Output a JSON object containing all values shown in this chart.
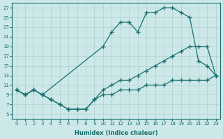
{
  "xlabel": "Humidex (Indice chaleur)",
  "bg_color": "#cce8e8",
  "line_color": "#1a7070",
  "grid_color": "#b0d0d0",
  "xlim": [
    -0.5,
    23.5
  ],
  "ylim": [
    4,
    28
  ],
  "xticks": [
    0,
    1,
    2,
    3,
    4,
    5,
    6,
    7,
    8,
    9,
    10,
    11,
    12,
    13,
    14,
    15,
    16,
    17,
    18,
    19,
    20,
    21,
    22,
    23
  ],
  "yticks": [
    5,
    7,
    9,
    11,
    13,
    15,
    17,
    19,
    21,
    23,
    25,
    27
  ],
  "line1_x": [
    0,
    1,
    2,
    3,
    10,
    11,
    12,
    13,
    14,
    15,
    16,
    17,
    18,
    19,
    20,
    21,
    22,
    23
  ],
  "line1_y": [
    10,
    9,
    10,
    9,
    19,
    22,
    24,
    24,
    22,
    26,
    26,
    27,
    27,
    26,
    25,
    16,
    15,
    13
  ],
  "line2_x": [
    0,
    1,
    2,
    3,
    4,
    5,
    6,
    7,
    8,
    9,
    10,
    11,
    12,
    13,
    14,
    15,
    16,
    17,
    18,
    19,
    20,
    21,
    22,
    23
  ],
  "line2_y": [
    10,
    9,
    10,
    9,
    8,
    7,
    6,
    6,
    6,
    8,
    10,
    11,
    12,
    12,
    13,
    14,
    15,
    16,
    17,
    18,
    19,
    19,
    19,
    13
  ],
  "line3_x": [
    0,
    1,
    2,
    3,
    4,
    5,
    6,
    7,
    8,
    9,
    10,
    11,
    12,
    13,
    14,
    15,
    16,
    17,
    18,
    19,
    20,
    21,
    22,
    23
  ],
  "line3_y": [
    10,
    9,
    10,
    9,
    8,
    7,
    6,
    6,
    6,
    8,
    9,
    9,
    10,
    10,
    10,
    11,
    11,
    11,
    12,
    12,
    12,
    12,
    12,
    13
  ],
  "marker": "+",
  "markersize": 4,
  "linewidth": 0.9,
  "tick_fontsize": 5,
  "xlabel_fontsize": 6
}
